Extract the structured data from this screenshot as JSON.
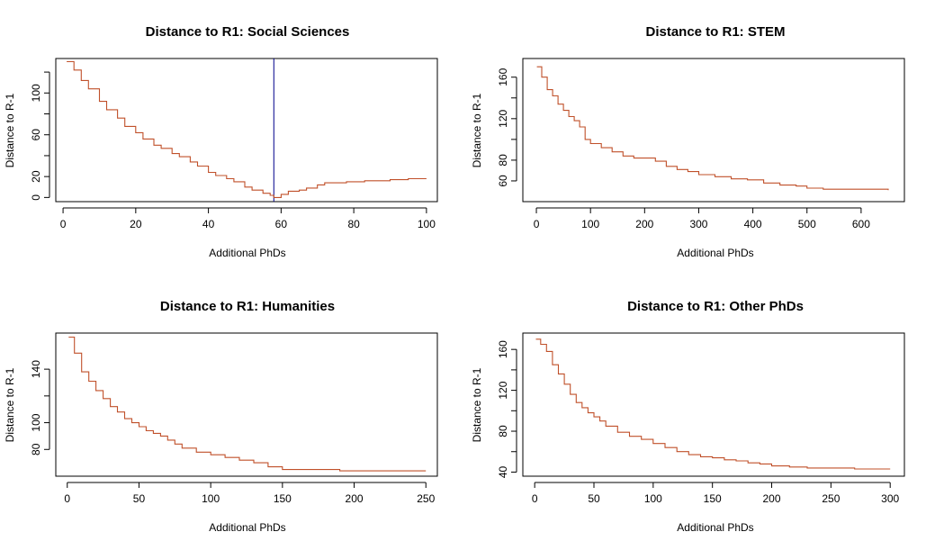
{
  "chart_data": [
    {
      "type": "line",
      "title": "Distance to R1: Social Sciences",
      "xlabel": "Additional PhDs",
      "ylabel": "Distance to R-1",
      "xlim": [
        -2,
        103
      ],
      "ylim": [
        -4,
        133
      ],
      "xticks": [
        0,
        20,
        40,
        60,
        80,
        100
      ],
      "yticks": [
        0,
        20,
        60,
        100
      ],
      "yticks_minor": [
        40,
        80,
        120
      ],
      "vline": {
        "x": 58,
        "color": "#00008B"
      },
      "line_color": "#C0502A",
      "series": [
        {
          "x": [
            1,
            3,
            5,
            7,
            10,
            12,
            15,
            17,
            20,
            22,
            25,
            27,
            30,
            32,
            35,
            37,
            40,
            42,
            45,
            47,
            50,
            52,
            55,
            57,
            58,
            60,
            62,
            65,
            67,
            70,
            72,
            75,
            78,
            80,
            83,
            85,
            88,
            90,
            93,
            95,
            98,
            100
          ],
          "y": [
            130,
            122,
            112,
            104,
            92,
            84,
            76,
            68,
            62,
            56,
            50,
            47,
            42,
            39,
            34,
            30,
            24,
            21,
            18,
            15,
            10,
            7,
            4,
            2,
            0,
            3,
            6,
            7,
            9,
            12,
            14,
            14,
            15,
            15,
            16,
            16,
            16,
            17,
            17,
            18,
            18,
            18
          ]
        }
      ]
    },
    {
      "type": "line",
      "title": "Distance to R1: STEM",
      "xlabel": "Additional PhDs",
      "ylabel": "Distance to R-1",
      "xlim": [
        -25,
        680
      ],
      "ylim": [
        40,
        178
      ],
      "xticks": [
        0,
        100,
        200,
        300,
        400,
        500,
        600
      ],
      "yticks": [
        60,
        80,
        120,
        160
      ],
      "yticks_minor": [
        100,
        140
      ],
      "line_color": "#C0502A",
      "series": [
        {
          "x": [
            1,
            10,
            20,
            30,
            40,
            50,
            60,
            70,
            80,
            90,
            100,
            120,
            140,
            160,
            180,
            200,
            220,
            240,
            260,
            280,
            300,
            330,
            360,
            390,
            420,
            450,
            480,
            500,
            530,
            560,
            600,
            650
          ],
          "y": [
            170,
            160,
            148,
            142,
            134,
            128,
            122,
            118,
            112,
            100,
            96,
            92,
            88,
            84,
            82,
            82,
            79,
            74,
            71,
            69,
            66,
            64,
            62,
            61,
            58,
            56,
            55,
            53,
            52,
            52,
            52,
            51
          ]
        }
      ]
    },
    {
      "type": "line",
      "title": "Distance to R1: Humanities",
      "xlabel": "Additional PhDs",
      "ylabel": "Distance to R-1",
      "xlim": [
        -8,
        258
      ],
      "ylim": [
        60,
        167
      ],
      "xticks": [
        0,
        50,
        100,
        150,
        200,
        250
      ],
      "yticks": [
        80,
        100,
        140
      ],
      "yticks_minor": [
        120
      ],
      "line_color": "#C0502A",
      "series": [
        {
          "x": [
            1,
            5,
            10,
            15,
            20,
            25,
            30,
            35,
            40,
            45,
            50,
            55,
            60,
            65,
            70,
            75,
            80,
            90,
            100,
            110,
            120,
            130,
            140,
            150,
            160,
            175,
            190,
            210,
            230,
            250
          ],
          "y": [
            164,
            152,
            138,
            131,
            124,
            118,
            112,
            108,
            103,
            100,
            97,
            94,
            92,
            90,
            87,
            84,
            81,
            78,
            76,
            74,
            72,
            70,
            67,
            65,
            65,
            65,
            64,
            64,
            64,
            64
          ]
        }
      ]
    },
    {
      "type": "line",
      "title": "Distance to R1: Other PhDs",
      "xlabel": "Additional PhDs",
      "ylabel": "Distance to R-1",
      "xlim": [
        -10,
        312
      ],
      "ylim": [
        36,
        176
      ],
      "xticks": [
        0,
        50,
        100,
        150,
        200,
        250,
        300
      ],
      "yticks": [
        40,
        80,
        120,
        160
      ],
      "yticks_minor": [
        60,
        100,
        140
      ],
      "line_color": "#C0502A",
      "series": [
        {
          "x": [
            1,
            5,
            10,
            15,
            20,
            25,
            30,
            35,
            40,
            45,
            50,
            55,
            60,
            70,
            80,
            90,
            100,
            110,
            120,
            130,
            140,
            150,
            160,
            170,
            180,
            190,
            200,
            215,
            230,
            250,
            270,
            300
          ],
          "y": [
            170,
            165,
            158,
            145,
            136,
            126,
            116,
            108,
            103,
            98,
            94,
            90,
            85,
            79,
            75,
            72,
            68,
            64,
            60,
            57,
            55,
            54,
            52,
            51,
            49,
            48,
            46,
            45,
            44,
            44,
            43,
            43
          ]
        }
      ]
    }
  ]
}
